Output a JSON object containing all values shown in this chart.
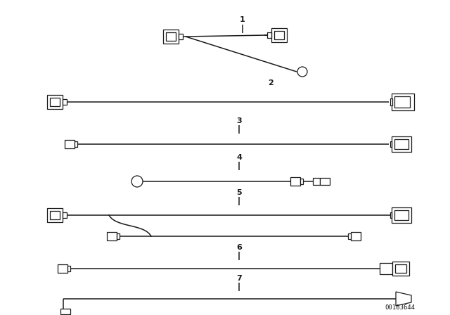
{
  "bg_color": "#ffffff",
  "line_color": "#1a1a1a",
  "part_number": "00183644",
  "figsize": [
    6.4,
    4.48
  ],
  "dpi": 100
}
